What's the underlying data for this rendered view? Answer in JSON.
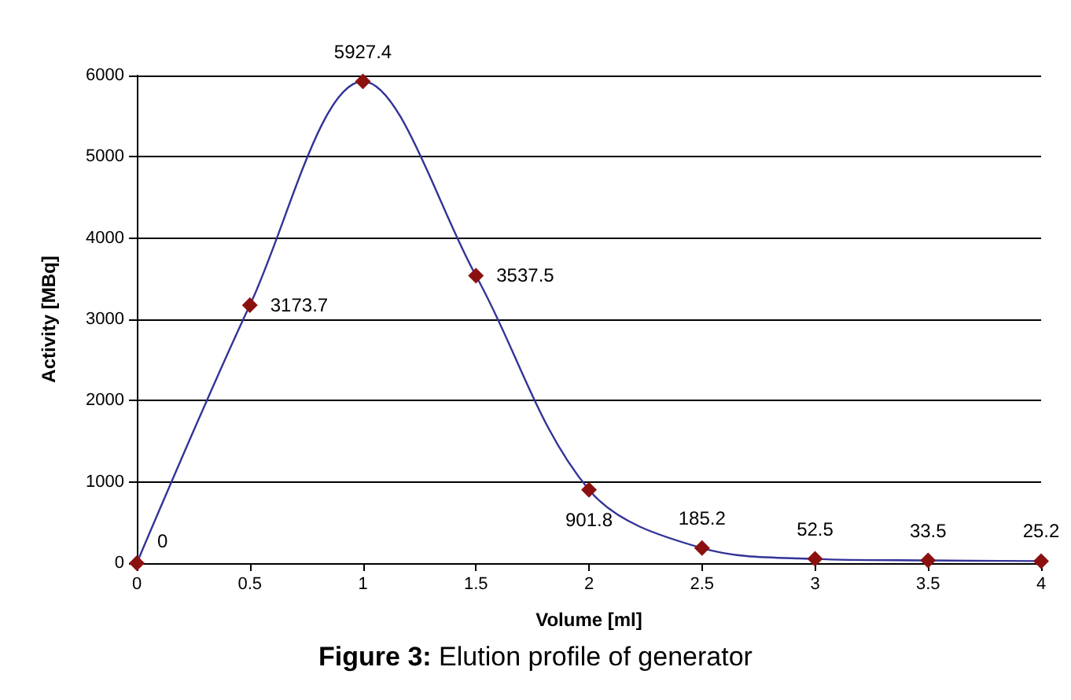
{
  "chart_data": {
    "type": "line",
    "title": "Figure 3: Elution profile of generator",
    "xlabel": "Volume [ml]",
    "ylabel": "Activity [MBq]",
    "x": [
      0,
      0.5,
      1,
      1.5,
      2,
      2.5,
      3,
      3.5,
      4
    ],
    "series": [
      {
        "color": "#333399",
        "colors": [
          "#8b1111",
          "#8b1111",
          "#8b1111",
          "#8b1111",
          "#8b1111",
          "#8b1111",
          "#8b1111",
          "#8b1111",
          "#8b1111"
        ],
        "values": [
          0,
          3173.7,
          5927.4,
          3537.5,
          901.8,
          185.2,
          52.5,
          33.5,
          25.2
        ]
      }
    ],
    "xlim": [
      0,
      4
    ],
    "xticks": [
      0,
      0.5,
      1,
      1.5,
      2,
      2.5,
      3,
      3.5,
      4
    ],
    "ylim": [
      0,
      6000
    ],
    "yticks": [
      0,
      1000,
      2000,
      3000,
      4000,
      5000,
      6000
    ],
    "grid": "y",
    "marker": "diamond",
    "line_style": "solid",
    "data_labels": true
  }
}
